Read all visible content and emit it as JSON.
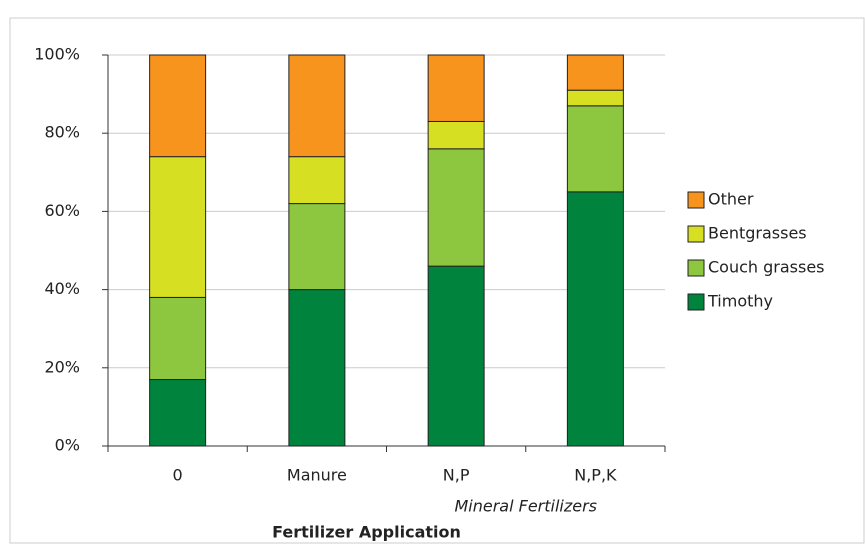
{
  "chart_data": {
    "type": "stacked_bar",
    "x_label": "Fertilizer Application",
    "annotation": "Mineral Fertilizers",
    "categories": [
      "0",
      "Manure",
      "N,P",
      "N,P,K"
    ],
    "series": [
      {
        "name": "Timothy",
        "color": "#00843d",
        "values": [
          17,
          40,
          46,
          65
        ]
      },
      {
        "name": "Couch grasses",
        "color": "#8dc63f",
        "values": [
          21,
          22,
          30,
          22
        ]
      },
      {
        "name": "Bentgrasses",
        "color": "#d7df23",
        "values": [
          36,
          12,
          7,
          4
        ]
      },
      {
        "name": "Other",
        "color": "#f7941d",
        "values": [
          26,
          26,
          17,
          9
        ]
      }
    ],
    "ylim": [
      0,
      100
    ],
    "yticks": [
      {
        "value": 0,
        "label": "0%"
      },
      {
        "value": 20,
        "label": "20%"
      },
      {
        "value": 40,
        "label": "40%"
      },
      {
        "value": 60,
        "label": "60%"
      },
      {
        "value": 80,
        "label": "80%"
      },
      {
        "value": 100,
        "label": "100%"
      }
    ],
    "grid": true,
    "legend": "right"
  }
}
